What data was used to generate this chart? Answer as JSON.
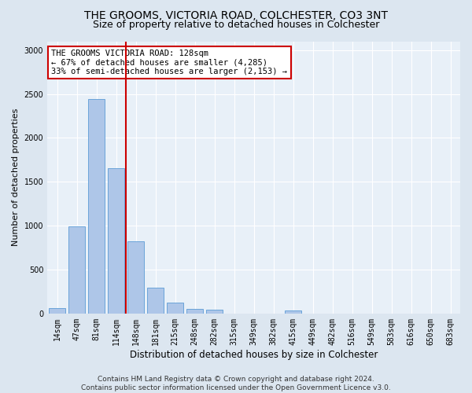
{
  "title1": "THE GROOMS, VICTORIA ROAD, COLCHESTER, CO3 3NT",
  "title2": "Size of property relative to detached houses in Colchester",
  "xlabel": "Distribution of detached houses by size in Colchester",
  "ylabel": "Number of detached properties",
  "categories": [
    "14sqm",
    "47sqm",
    "81sqm",
    "114sqm",
    "148sqm",
    "181sqm",
    "215sqm",
    "248sqm",
    "282sqm",
    "315sqm",
    "349sqm",
    "382sqm",
    "415sqm",
    "449sqm",
    "482sqm",
    "516sqm",
    "549sqm",
    "583sqm",
    "616sqm",
    "650sqm",
    "683sqm"
  ],
  "values": [
    60,
    990,
    2440,
    1650,
    820,
    295,
    125,
    55,
    45,
    0,
    0,
    0,
    30,
    0,
    0,
    0,
    0,
    0,
    0,
    0,
    0
  ],
  "bar_color": "#aec6e8",
  "bar_edge_color": "#5b9bd5",
  "vline_x": 3.5,
  "vline_color": "#cc0000",
  "annotation_text": "THE GROOMS VICTORIA ROAD: 128sqm\n← 67% of detached houses are smaller (4,285)\n33% of semi-detached houses are larger (2,153) →",
  "annotation_box_color": "#ffffff",
  "annotation_box_edge_color": "#cc0000",
  "ylim": [
    0,
    3100
  ],
  "yticks": [
    0,
    500,
    1000,
    1500,
    2000,
    2500,
    3000
  ],
  "bg_color": "#dce6f0",
  "plot_bg_color": "#e8f0f8",
  "footer": "Contains HM Land Registry data © Crown copyright and database right 2024.\nContains public sector information licensed under the Open Government Licence v3.0.",
  "title1_fontsize": 10,
  "title2_fontsize": 9,
  "xlabel_fontsize": 8.5,
  "ylabel_fontsize": 8,
  "tick_fontsize": 7,
  "footer_fontsize": 6.5,
  "annot_fontsize": 7.5
}
